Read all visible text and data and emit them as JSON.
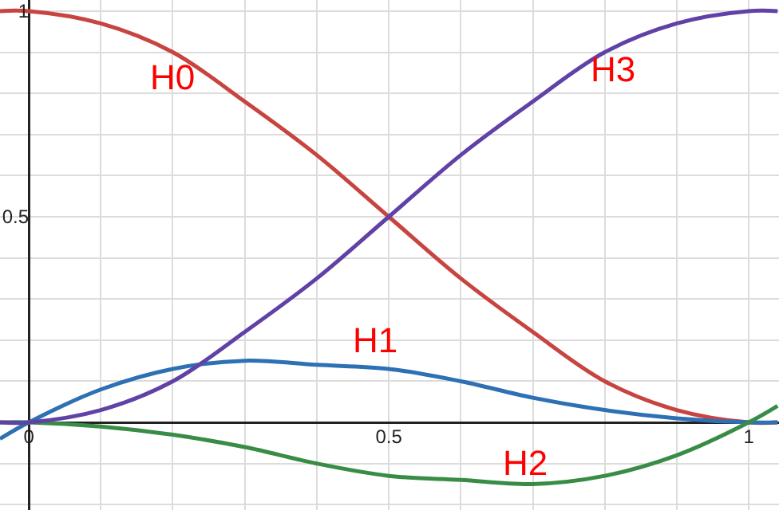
{
  "chart_data": {
    "type": "line",
    "x": [
      -0.04,
      0,
      0.1,
      0.2,
      0.3,
      0.4,
      0.5,
      0.6,
      0.7,
      0.8,
      0.9,
      1,
      1.04
    ],
    "series": [
      {
        "color": "#c74440",
        "values": [
          1.0,
          1,
          0.97,
          0.9,
          0.78,
          0.65,
          0.5,
          0.35,
          0.22,
          0.1,
          0.03,
          0,
          0.0
        ]
      },
      {
        "color": "#2d70b3",
        "values": [
          -0.04,
          0,
          0.08,
          0.13,
          0.15,
          0.14,
          0.13,
          0.1,
          0.06,
          0.03,
          0.01,
          0,
          0.0
        ]
      },
      {
        "color": "#388c46",
        "values": [
          0.0,
          0,
          -0.01,
          -0.03,
          -0.06,
          -0.1,
          -0.13,
          -0.14,
          -0.15,
          -0.13,
          -0.08,
          0,
          0.04
        ]
      },
      {
        "color": "#6042a6",
        "values": [
          0.0,
          0,
          0.03,
          0.1,
          0.22,
          0.35,
          0.5,
          0.65,
          0.78,
          0.9,
          0.97,
          1,
          1.0
        ]
      }
    ],
    "annotations": [
      "H0",
      "H1",
      "H2",
      "H3"
    ],
    "xlim": [
      -0.04,
      1.042
    ],
    "ylim": [
      -0.213,
      1.027
    ],
    "xticks": [
      0,
      {
        "value": 0.1,
        "label": null
      },
      {
        "value": 0.2,
        "label": null
      },
      {
        "value": 0.3,
        "label": null
      },
      {
        "value": 0.4,
        "label": null
      },
      0.5,
      {
        "value": 0.6,
        "label": null
      },
      {
        "value": 0.7,
        "label": null
      },
      {
        "value": 0.8,
        "label": null
      },
      {
        "value": 0.9,
        "label": null
      },
      1
    ],
    "yticks": [
      {
        "value": -0.2,
        "label": null
      },
      {
        "value": -0.1,
        "label": null
      },
      {
        "value": 0,
        "label": null
      },
      {
        "value": 0.1,
        "label": null
      },
      {
        "value": 0.2,
        "label": null
      },
      {
        "value": 0.3,
        "label": null
      },
      {
        "value": 0.4,
        "label": null
      },
      0.5,
      {
        "value": 0.6,
        "label": null
      },
      {
        "value": 0.7,
        "label": null
      },
      {
        "value": 0.8,
        "label": null
      },
      {
        "value": 0.9,
        "label": null
      },
      1
    ],
    "grid": true,
    "marker": "none",
    "line_style": "solid"
  }
}
